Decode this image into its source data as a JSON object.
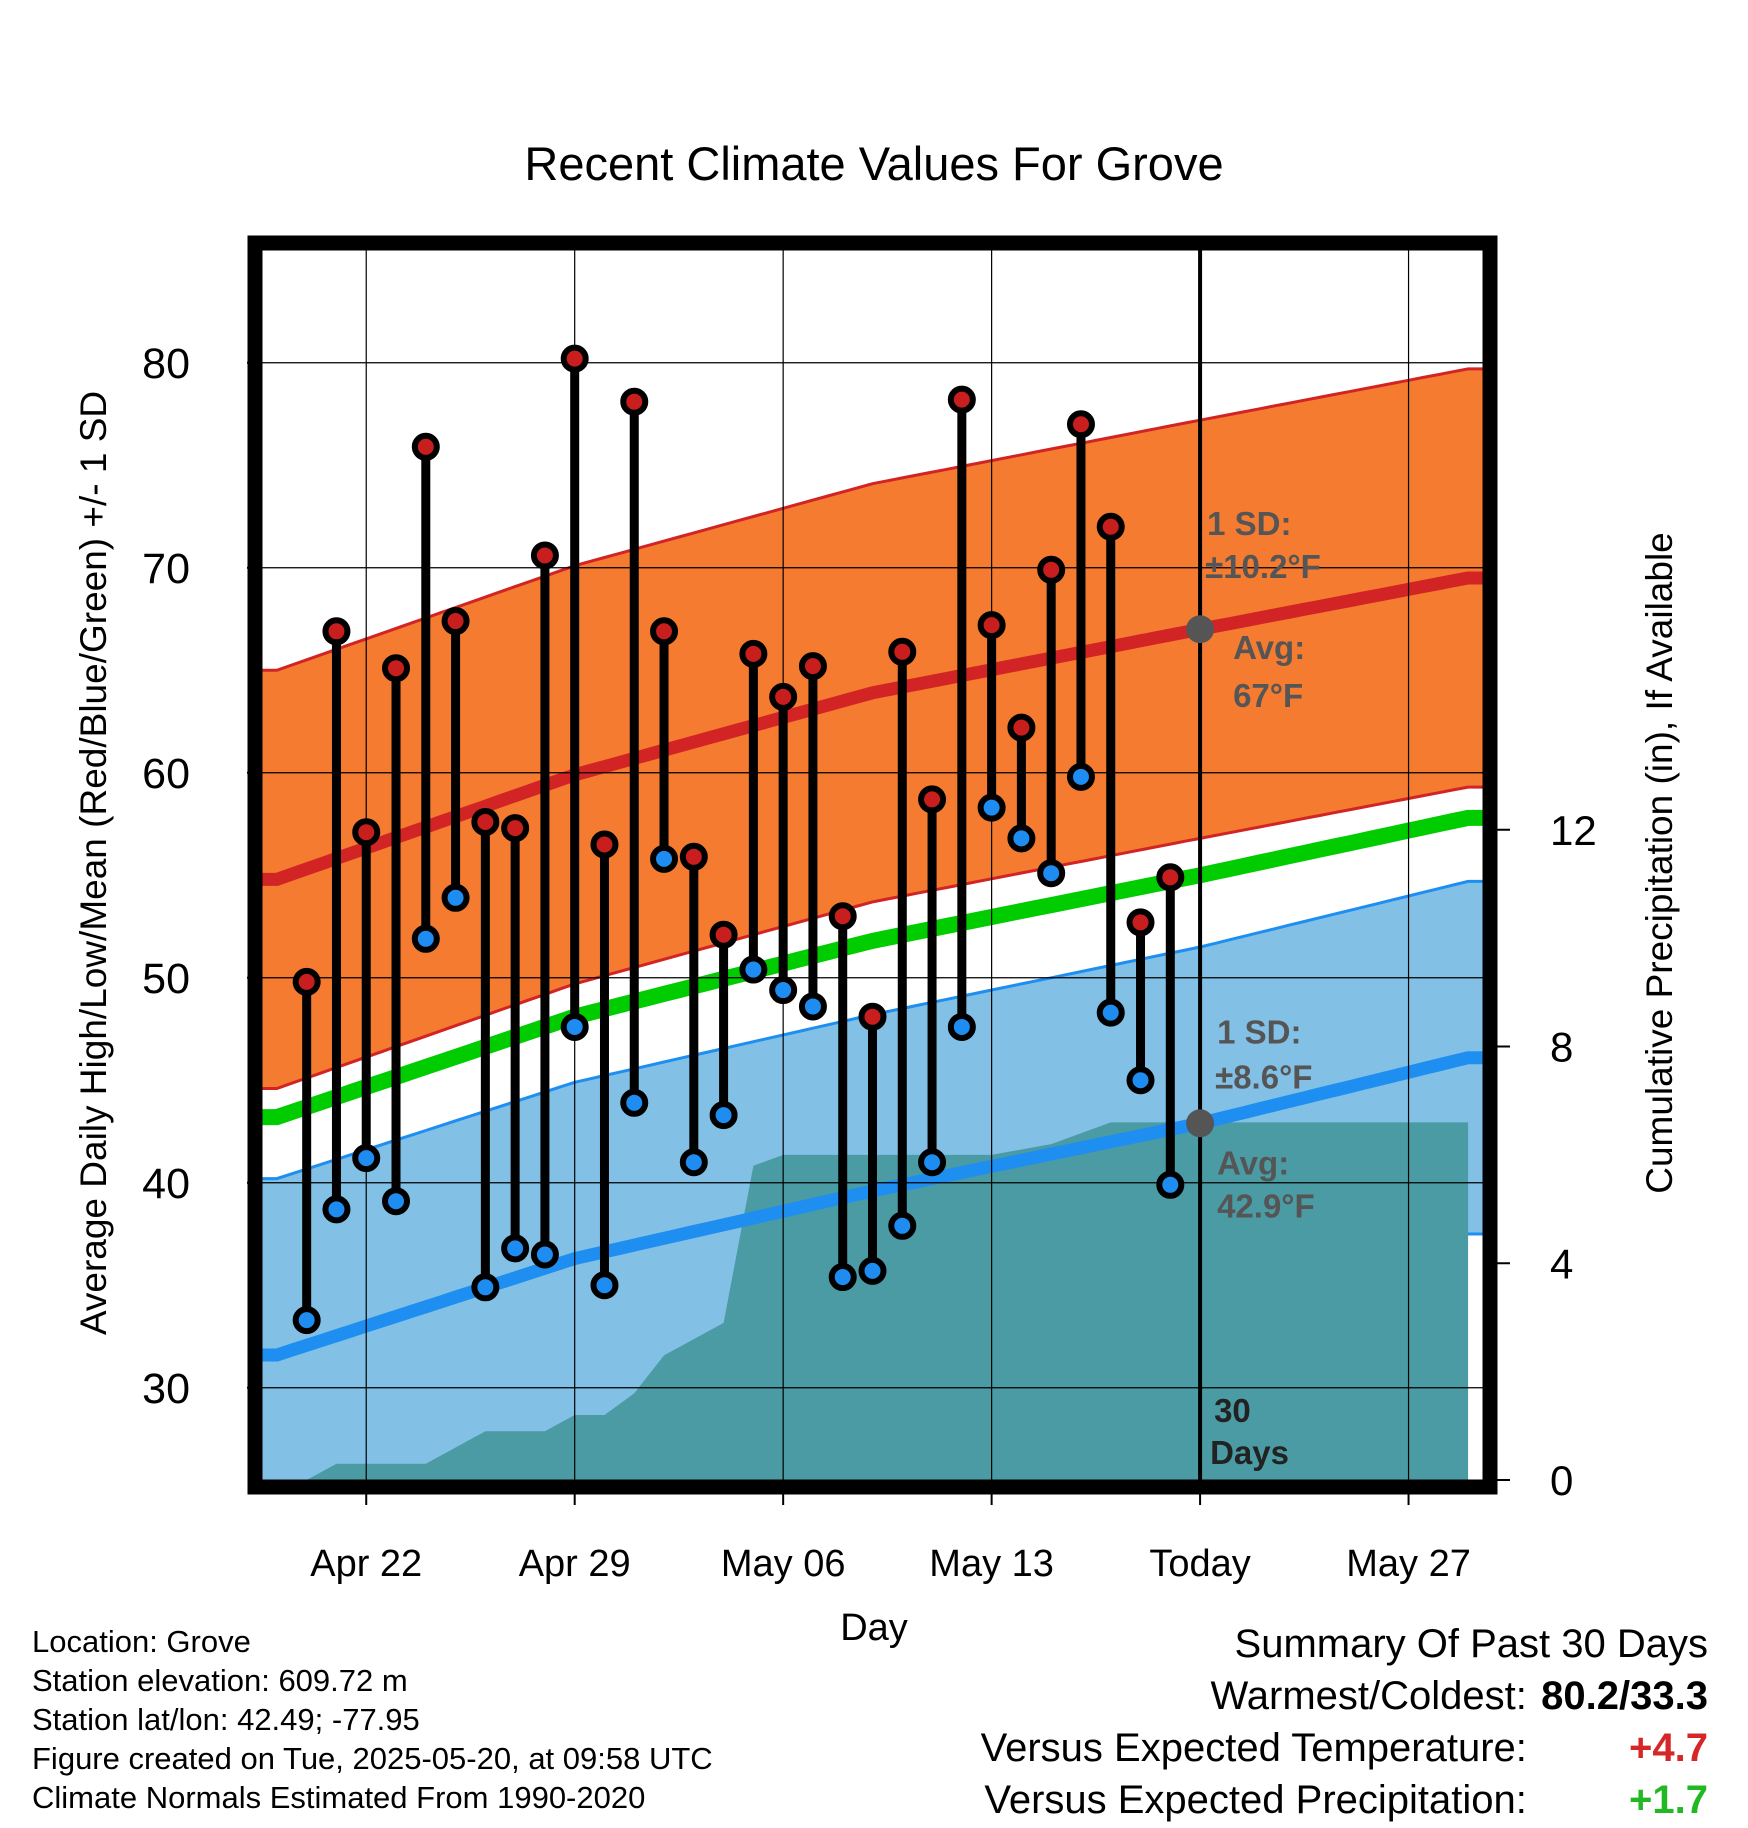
{
  "chart_data": {
    "type": "line",
    "title": "Recent Climate Values For Grove",
    "xlabel": "Day",
    "ylabel": "Average Daily High/Low/Mean (Red/Blue/Green) +/- 1 SD",
    "y2label": "Cumulative Precipitation (in), If Available",
    "ylim": [
      25.5,
      85.5
    ],
    "y2lim": [
      0,
      22.7
    ],
    "yticks": [
      30,
      40,
      50,
      60,
      70,
      80
    ],
    "y2ticks": [
      0,
      4,
      8,
      12
    ],
    "x_tick_labels": [
      {
        "day": 3,
        "label": "Apr 22"
      },
      {
        "day": 10,
        "label": "Apr 29"
      },
      {
        "day": 17,
        "label": "May 06"
      },
      {
        "day": 24,
        "label": "May 13"
      },
      {
        "day": 31,
        "label": "Today"
      },
      {
        "day": 38,
        "label": "May 27"
      }
    ],
    "xlim": [
      -0.5,
      40.5
    ],
    "grid": true,
    "today_day": 31,
    "today_label": "30 Days",
    "days": [
      1,
      2,
      3,
      4,
      5,
      6,
      7,
      8,
      9,
      10,
      11,
      12,
      13,
      14,
      15,
      16,
      17,
      18,
      19,
      20,
      21,
      22,
      23,
      24,
      25,
      26,
      27,
      28,
      29,
      30
    ],
    "daily_high": [
      49.8,
      66.9,
      57.1,
      65.1,
      75.9,
      67.4,
      57.6,
      57.3,
      70.6,
      80.2,
      56.5,
      78.1,
      66.9,
      55.9,
      52.1,
      65.8,
      63.7,
      65.2,
      53.0,
      48.1,
      65.9,
      58.7,
      78.2,
      67.2,
      62.2,
      69.9,
      77.0,
      72.0,
      52.7,
      54.9
    ],
    "daily_low": [
      33.3,
      38.7,
      41.2,
      39.1,
      51.9,
      53.9,
      34.9,
      36.8,
      36.5,
      47.6,
      35.0,
      43.9,
      55.8,
      41.0,
      43.3,
      50.4,
      49.4,
      48.6,
      35.4,
      35.7,
      37.9,
      41.0,
      47.6,
      58.3,
      56.8,
      55.1,
      59.8,
      48.3,
      45.0,
      39.9
    ],
    "normals": {
      "day": [
        0,
        10,
        20,
        31,
        40
      ],
      "high_avg": [
        54.8,
        59.9,
        63.9,
        67.0,
        69.5
      ],
      "high_sd": 10.2,
      "low_avg": [
        31.6,
        36.3,
        39.6,
        42.9,
        46.1
      ],
      "low_sd": 8.6,
      "mean_avg": [
        43.2,
        48.1,
        51.8,
        55.0,
        57.8
      ]
    },
    "cumulative_precip": {
      "day": [
        0,
        1,
        2,
        5,
        6,
        7,
        8,
        9,
        10,
        11,
        12,
        13,
        14,
        15,
        16,
        17,
        18,
        20,
        24,
        25,
        26,
        27,
        28,
        31,
        40
      ],
      "value": [
        0,
        0,
        0.3,
        0.3,
        0.6,
        0.9,
        0.9,
        0.9,
        1.2,
        1.2,
        1.6,
        2.3,
        2.6,
        2.9,
        5.8,
        6.0,
        6.0,
        6.0,
        6.0,
        6.1,
        6.2,
        6.4,
        6.6,
        6.6,
        6.6
      ]
    },
    "annotations": {
      "high_sd_label": "1 SD:",
      "high_sd_value": "±10.2°F",
      "high_avg_label": "Avg:",
      "high_avg_value": "67°F",
      "high_avg_point": 67.0,
      "low_sd_label": "1 SD:",
      "low_sd_value": "±8.6°F",
      "low_avg_label": "Avg:",
      "low_avg_value": "42.9°F",
      "low_avg_point": 42.9
    },
    "colors": {
      "high_band": "#f47b30",
      "high_line": "#d22424",
      "low_band": "#82c0e6",
      "low_line": "#1e8ff0",
      "mean_line": "#00cc00",
      "precip": "#4a9ba4",
      "annotation": "#555555",
      "high_marker": "#c81e1e",
      "low_marker": "#1e8cf0"
    }
  },
  "footer": {
    "location": "Location: Grove",
    "elevation": "Station elevation: 609.72 m",
    "latlon": "Station lat/lon: 42.49; -77.95",
    "created": "Figure created on Tue, 2025-05-20, at 09:58 UTC",
    "normals": "Climate Normals Estimated From 1990-2020"
  },
  "summary": {
    "title": "Summary Of Past 30 Days",
    "warmest_coldest_label": "Warmest/Coldest:",
    "warmest_coldest_value": "80.2/33.3",
    "temp_label": "Versus Expected Temperature:",
    "temp_value": "+4.7",
    "precip_label": "Versus Expected Precipitation:",
    "precip_value": "+1.7"
  }
}
